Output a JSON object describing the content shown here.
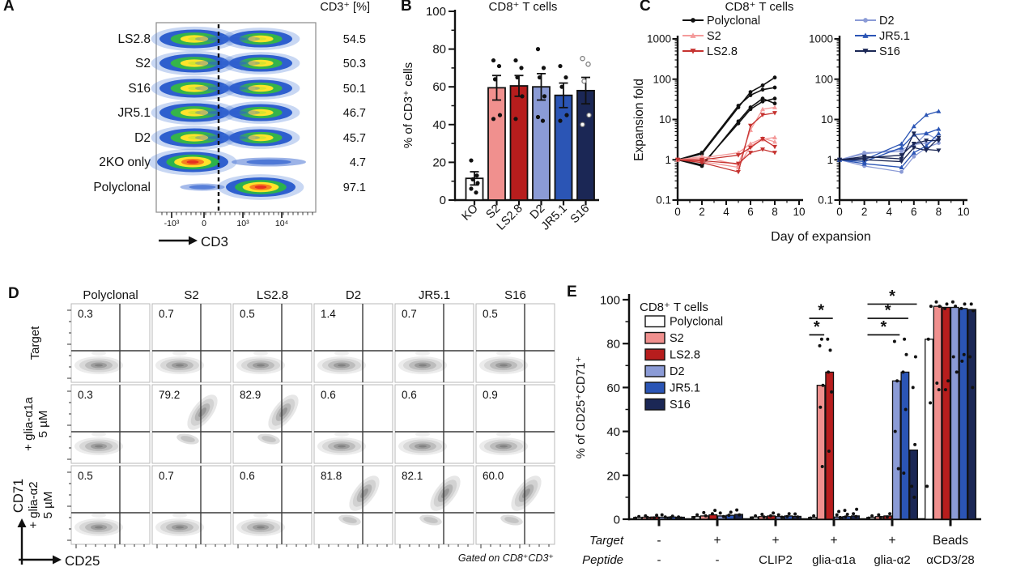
{
  "figure": {
    "panels": [
      "A",
      "B",
      "C",
      "D",
      "E"
    ]
  },
  "chart_data": [
    {
      "panel": "A",
      "type": "flow-pseudocolor-stack",
      "header": "CD3⁺ [%]",
      "xlabel": "CD3",
      "x_ticks": [
        "-10³",
        "0",
        "10³",
        "10⁴"
      ],
      "rows": [
        {
          "name": "LS2.8",
          "value": "54.5",
          "pattern": "double"
        },
        {
          "name": "S2",
          "value": "50.3",
          "pattern": "double"
        },
        {
          "name": "S16",
          "value": "50.1",
          "pattern": "double"
        },
        {
          "name": "JR5.1",
          "value": "46.7",
          "pattern": "double"
        },
        {
          "name": "D2",
          "value": "45.7",
          "pattern": "double"
        },
        {
          "name": "2KO only",
          "value": "4.7",
          "pattern": "neg-dominant"
        },
        {
          "name": "Polyclonal",
          "value": "97.1",
          "pattern": "pos-dominant"
        }
      ]
    },
    {
      "panel": "B",
      "type": "bar",
      "title": "CD8⁺ T cells",
      "ylabel": "% of CD3⁺ cells",
      "ylim": [
        0,
        100
      ],
      "yticks": [
        0,
        20,
        40,
        60,
        80,
        100
      ],
      "categories": [
        "KO",
        "S2",
        "LS2.8",
        "D2",
        "JR5.1",
        "S16"
      ],
      "values": [
        11.5,
        59.5,
        60.5,
        60,
        55.5,
        58
      ],
      "errors_low": [
        8,
        53,
        55,
        53,
        49,
        51
      ],
      "errors_high": [
        15,
        66,
        66,
        67,
        62,
        65
      ],
      "bar_colors": [
        "#FFFFFF",
        "#F0908E",
        "#B71D1D",
        "#8B9BD6",
        "#2B55B5",
        "#1B2755"
      ],
      "dots": [
        [
          21,
          13,
          11,
          9,
          6,
          4
        ],
        [
          74,
          71,
          64,
          45,
          43
        ],
        [
          74,
          70,
          65,
          55,
          43
        ],
        [
          80,
          70,
          65,
          55,
          44,
          42
        ],
        [
          71,
          65,
          60,
          45,
          42
        ],
        [
          75,
          72,
          63,
          45,
          40
        ]
      ],
      "open_dot_categories": [
        "S16"
      ]
    },
    {
      "panel": "C",
      "type": "line",
      "title": "CD8⁺ T cells",
      "ylabel": "Expansion fold",
      "xlabel": "Day of expansion",
      "yscale": "log",
      "ylim": [
        0.1,
        1000
      ],
      "yticks": [
        0.1,
        1,
        10,
        100,
        1000
      ],
      "xticks": [
        0,
        2,
        4,
        6,
        8,
        10
      ],
      "legend_markers": {
        "Polyclonal": "circle",
        "S2": "tri-up",
        "LS2.8": "tri-down",
        "D2": "circle",
        "JR5.1": "tri-up",
        "S16": "tri-down"
      },
      "legend_colors": {
        "Polyclonal": "#111111",
        "S2": "#F49B9B",
        "LS2.8": "#C63330",
        "D2": "#8B9BD6",
        "JR5.1": "#2B55B5",
        "S16": "#1B2755"
      },
      "subplots": [
        {
          "side": "left",
          "legend": [
            "Polyclonal",
            "S2",
            "LS2.8"
          ],
          "series": [
            {
              "name": "Polyclonal",
              "color": "#111111",
              "marker": "circle",
              "x": [
                0,
                2,
                5,
                6,
                7,
                8
              ],
              "y": [
                1,
                1.4,
                20,
                48,
                70,
                110
              ]
            },
            {
              "name": "Polyclonal",
              "color": "#111111",
              "marker": "circle",
              "x": [
                0,
                2,
                5,
                6,
                7,
                8
              ],
              "y": [
                1,
                1.5,
                22,
                40,
                55,
                62
              ]
            },
            {
              "name": "Polyclonal",
              "color": "#111111",
              "marker": "circle",
              "x": [
                0,
                2,
                5,
                6,
                7,
                8
              ],
              "y": [
                1,
                0.7,
                9,
                20,
                33,
                25
              ]
            },
            {
              "name": "Polyclonal",
              "color": "#111111",
              "marker": "circle",
              "x": [
                0,
                2,
                5,
                6,
                7,
                8
              ],
              "y": [
                1,
                0.75,
                8,
                18,
                28,
                33
              ]
            },
            {
              "name": "S2",
              "color": "#F49B9B",
              "marker": "tri-up",
              "x": [
                0,
                2,
                5,
                6,
                7,
                8
              ],
              "y": [
                1,
                1.2,
                0.75,
                5.5,
                18,
                20
              ]
            },
            {
              "name": "S2",
              "color": "#F49B9B",
              "marker": "tri-up",
              "x": [
                0,
                2,
                5,
                6,
                7,
                8
              ],
              "y": [
                1,
                0.9,
                0.65,
                2.2,
                3.2,
                3.6
              ]
            },
            {
              "name": "S2",
              "color": "#F49B9B",
              "marker": "tri-up",
              "x": [
                0,
                2,
                5,
                6,
                7,
                8
              ],
              "y": [
                1,
                1.1,
                1.5,
                2.5,
                3.4,
                2.8
              ]
            },
            {
              "name": "LS2.8",
              "color": "#C63330",
              "marker": "tri-down",
              "x": [
                0,
                2,
                5,
                6,
                7,
                8
              ],
              "y": [
                1,
                0.85,
                0.5,
                7,
                13,
                14.5
              ]
            },
            {
              "name": "LS2.8",
              "color": "#C63330",
              "marker": "tri-down",
              "x": [
                0,
                2,
                5,
                6,
                7,
                8
              ],
              "y": [
                1,
                1.0,
                1.3,
                2.0,
                3.3,
                2.1
              ]
            },
            {
              "name": "LS2.8",
              "color": "#C63330",
              "marker": "tri-down",
              "x": [
                0,
                2,
                5,
                6,
                7,
                8
              ],
              "y": [
                1,
                0.95,
                0.8,
                1.5,
                1.8,
                1.5
              ]
            }
          ]
        },
        {
          "side": "right",
          "legend": [
            "D2",
            "JR5.1",
            "S16"
          ],
          "series": [
            {
              "name": "D2",
              "color": "#8B9BD6",
              "marker": "circle",
              "x": [
                0,
                2,
                5,
                6,
                7,
                8
              ],
              "y": [
                1,
                1.5,
                1.6,
                2.2,
                4.5,
                3.1
              ]
            },
            {
              "name": "D2",
              "color": "#8B9BD6",
              "marker": "circle",
              "x": [
                0,
                2,
                5,
                6,
                7,
                8
              ],
              "y": [
                1,
                0.7,
                0.5,
                1.2,
                2.0,
                2.6
              ]
            },
            {
              "name": "D2",
              "color": "#8B9BD6",
              "marker": "circle",
              "x": [
                0,
                2,
                5,
                6,
                7,
                8
              ],
              "y": [
                1,
                1.4,
                1.8,
                2.4,
                2.6,
                3.3
              ]
            },
            {
              "name": "JR5.1",
              "color": "#2B55B5",
              "marker": "tri-up",
              "x": [
                0,
                2,
                5,
                6,
                7,
                8
              ],
              "y": [
                1,
                1.0,
                2.5,
                6.8,
                13,
                16
              ]
            },
            {
              "name": "JR5.1",
              "color": "#2B55B5",
              "marker": "tri-up",
              "x": [
                0,
                2,
                5,
                6,
                7,
                8
              ],
              "y": [
                1,
                0.9,
                2.0,
                4.2,
                4.5,
                5.8
              ]
            },
            {
              "name": "JR5.1",
              "color": "#2B55B5",
              "marker": "tri-up",
              "x": [
                0,
                2,
                5,
                6,
                7,
                8
              ],
              "y": [
                1,
                0.8,
                0.65,
                1.5,
                2.2,
                4.5
              ]
            },
            {
              "name": "S16",
              "color": "#1B2755",
              "marker": "tri-down",
              "x": [
                0,
                2,
                5,
                6,
                7,
                8
              ],
              "y": [
                1,
                1.2,
                1.05,
                4.5,
                1.8,
                1.7
              ]
            },
            {
              "name": "S16",
              "color": "#1B2755",
              "marker": "tri-down",
              "x": [
                0,
                2,
                5,
                6,
                7,
                8
              ],
              "y": [
                1,
                1.0,
                0.9,
                2.0,
                1.7,
                3.5
              ]
            },
            {
              "name": "S16",
              "color": "#1B2755",
              "marker": "tri-down",
              "x": [
                0,
                2,
                5,
                6,
                7,
                8
              ],
              "y": [
                1,
                1.1,
                1.3,
                2.5,
                3.0,
                3.0
              ]
            }
          ]
        }
      ]
    },
    {
      "panel": "D",
      "type": "flow-density-grid",
      "columns": [
        "Polyclonal",
        "S2",
        "LS2.8",
        "D2",
        "JR5.1",
        "S16"
      ],
      "row_labels": [
        [
          "Target",
          ""
        ],
        [
          "+ glia-α1a",
          "5 µM"
        ],
        [
          "+ glia-α2",
          "5 µM"
        ]
      ],
      "values": [
        [
          "0.3",
          "0.7",
          "0.5",
          "1.4",
          "0.7",
          "0.5"
        ],
        [
          "0.3",
          "79.2",
          "82.9",
          "0.6",
          "0.6",
          "0.9"
        ],
        [
          "0.5",
          "0.7",
          "0.6",
          "81.8",
          "82.1",
          "60.0"
        ]
      ],
      "positive": [
        [
          0,
          0,
          0,
          0,
          0,
          0
        ],
        [
          0,
          1,
          1,
          0,
          0,
          0
        ],
        [
          0,
          0,
          0,
          1,
          1,
          1
        ]
      ],
      "xlabel": "CD25",
      "ylabel": "CD71",
      "footnote": "Gated on CD8⁺CD3⁺"
    },
    {
      "panel": "E",
      "type": "bar-grouped",
      "title": "CD8⁺ T cells",
      "ylabel": "% of CD25⁺CD71⁺",
      "ylim": [
        0,
        100
      ],
      "yticks": [
        0,
        20,
        40,
        60,
        80,
        100
      ],
      "series": [
        "Polyclonal",
        "S2",
        "LS2.8",
        "D2",
        "JR5.1",
        "S16"
      ],
      "series_colors": [
        "#FFFFFF",
        "#F0908E",
        "#B71D1D",
        "#8B9BD6",
        "#2B55B5",
        "#1B2755"
      ],
      "axis_rows": {
        "target_label": "Target",
        "peptide_label": "Peptide"
      },
      "groups": [
        {
          "target": "-",
          "peptide": "-",
          "values": [
            0.8,
            0.9,
            1.0,
            0.9,
            1.0,
            0.9
          ],
          "dots": [
            [
              0.5,
              1.2
            ],
            [
              0.8,
              1.5
            ],
            [
              0.6,
              1.8
            ],
            [
              1.0,
              2.0
            ],
            [
              0.7,
              1.4
            ],
            [
              0.5,
              1.0
            ]
          ]
        },
        {
          "target": "+",
          "peptide": "-",
          "values": [
            1.2,
            1.5,
            2.0,
            1.5,
            1.8,
            2.2
          ],
          "dots": [
            [
              0.8,
              2.0
            ],
            [
              1.5,
              3.0
            ],
            [
              2.5,
              4.0
            ],
            [
              1.2,
              2.8
            ],
            [
              1.8,
              3.2
            ],
            [
              2.0,
              4.2
            ]
          ]
        },
        {
          "target": "+",
          "peptide": "CLIP2",
          "values": [
            1.0,
            1.2,
            1.5,
            1.2,
            1.5,
            1.3
          ],
          "dots": [
            [
              0.6,
              1.5
            ],
            [
              1.0,
              2.2
            ],
            [
              1.5,
              2.8
            ],
            [
              0.9,
              2.0
            ],
            [
              1.2,
              2.5
            ],
            [
              1.0,
              2.4
            ]
          ]
        },
        {
          "target": "+",
          "peptide": "glia-α1a",
          "values": [
            0.8,
            61,
            67,
            1.0,
            1.2,
            1.5
          ],
          "dots": [
            [
              0.5,
              1.5
            ],
            [
              24,
              51,
              61,
              79,
              82
            ],
            [
              31,
              58,
              67,
              77,
              82
            ],
            [
              0.8,
              2.0,
              3.5
            ],
            [
              1.0,
              2.2,
              4.0
            ],
            [
              1.2,
              2.5,
              4.5
            ]
          ]
        },
        {
          "target": "+",
          "peptide": "glia-α2",
          "values": [
            0.8,
            1.2,
            1.5,
            63,
            67,
            31.5
          ],
          "dots": [
            [
              0.5,
              1.5
            ],
            [
              0.8,
              2.0
            ],
            [
              1.0,
              2.5
            ],
            [
              23,
              40,
              63,
              81
            ],
            [
              21,
              50,
              67,
              75,
              82
            ],
            [
              10,
              15,
              34,
              60,
              74
            ]
          ]
        },
        {
          "target": "Beads",
          "peptide": "αCD3/28",
          "values": [
            82,
            97,
            96.5,
            96.5,
            96,
            95.5
          ],
          "dots": [
            [
              15,
              53,
              82,
              97
            ],
            [
              59,
              62,
              97,
              99
            ],
            [
              59,
              63,
              96,
              98
            ],
            [
              67,
              74,
              97,
              99
            ],
            [
              72,
              75,
              96,
              98
            ],
            [
              60,
              74,
              95,
              98
            ]
          ]
        }
      ],
      "significance": {
        "symbol": "*",
        "brackets": [
          {
            "group": 3,
            "from": 0,
            "to": 1,
            "height": 84
          },
          {
            "group": 3,
            "from": 0,
            "to": 2,
            "height": 91.5
          },
          {
            "group": 4,
            "from": 0,
            "to": 3,
            "height": 84
          },
          {
            "group": 4,
            "from": 0,
            "to": 4,
            "height": 91.5
          },
          {
            "group": 4,
            "from": 0,
            "to": 5,
            "height": 98
          }
        ]
      }
    }
  ]
}
